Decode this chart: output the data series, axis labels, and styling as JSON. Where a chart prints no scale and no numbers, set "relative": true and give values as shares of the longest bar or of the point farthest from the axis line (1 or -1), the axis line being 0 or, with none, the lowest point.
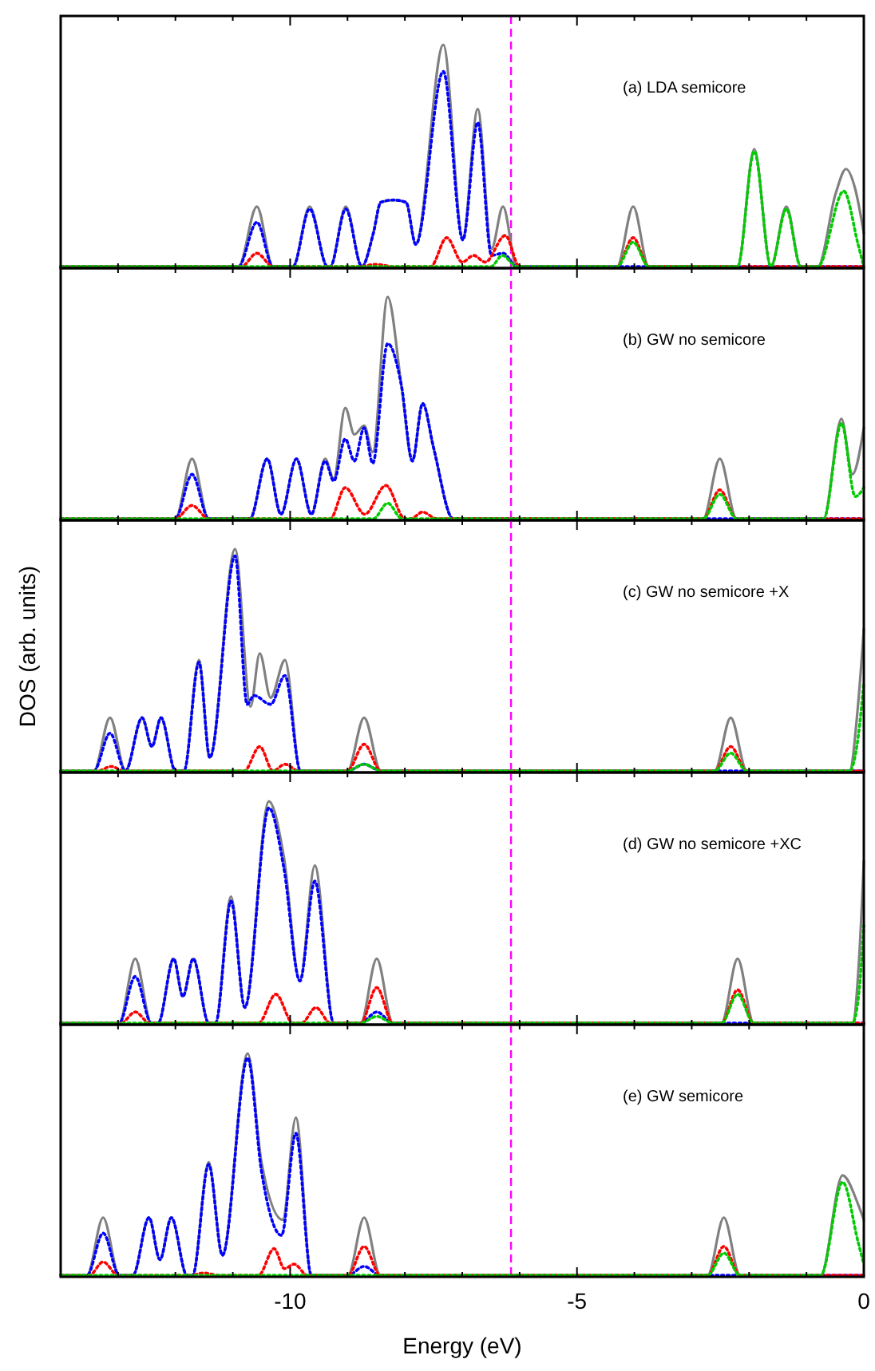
{
  "chart_data": [
    {
      "type": "line",
      "title": "(a) LDA semicore",
      "relative": true,
      "xlim": [
        -14,
        0
      ],
      "xticks": [
        {
          "value": -14,
          "label": null
        },
        {
          "value": -13,
          "label": null
        },
        {
          "value": -12,
          "label": null
        },
        {
          "value": -11,
          "label": null
        },
        -10,
        {
          "value": -9,
          "label": null
        },
        {
          "value": -8,
          "label": null
        },
        {
          "value": -7,
          "label": null
        },
        {
          "value": -6,
          "label": null
        },
        -5,
        {
          "value": -4,
          "label": null
        },
        {
          "value": -3,
          "label": null
        },
        {
          "value": -2,
          "label": null
        },
        {
          "value": -1,
          "label": null
        },
        0
      ],
      "tick_labels": false,
      "ref_lines": [
        {
          "axis": "x",
          "value": -6.15,
          "color": "#ff00ff",
          "line_style": "dashed"
        }
      ],
      "series": [
        {
          "color": "#808080",
          "line_style": "solid",
          "x": [
            -14,
            -10.9,
            -10.58,
            -10.3,
            -9.95,
            -9.66,
            -9.35,
            -9.3,
            -9.03,
            -8.75,
            -8.55,
            -8.42,
            -8.2,
            -7.98,
            -7.81,
            -7.33,
            -6.99,
            -6.73,
            -6.49,
            -6.29,
            -6.05,
            -4.3,
            -4.02,
            -3.75,
            -2.2,
            -1.91,
            -1.62,
            -1.35,
            -1.1,
            -0.8,
            -0.49,
            -0.31,
            -0.15,
            0
          ],
          "values": [
            0,
            0,
            0.27,
            0,
            0,
            0.27,
            0,
            0,
            0.27,
            0,
            0.15,
            0.29,
            0.3,
            0.29,
            0.1,
            1,
            0.13,
            0.71,
            0.08,
            0.27,
            0,
            0,
            0.27,
            0,
            0,
            0.53,
            0,
            0.27,
            0,
            0,
            0.33,
            0.44,
            0.35,
            0.15
          ]
        },
        {
          "color": "#0000ff",
          "line_style": "dotted",
          "x": [
            -14,
            -10.9,
            -10.58,
            -10.3,
            -9.95,
            -9.66,
            -9.35,
            -9.3,
            -9.03,
            -8.75,
            -8.55,
            -8.42,
            -8.2,
            -7.98,
            -7.81,
            -7.33,
            -6.99,
            -6.73,
            -6.49,
            -6.29,
            -6.05,
            0
          ],
          "values": [
            0,
            0,
            0.2,
            0,
            0,
            0.26,
            0,
            0,
            0.26,
            0,
            0.15,
            0.29,
            0.3,
            0.29,
            0.1,
            0.88,
            0.12,
            0.65,
            0.05,
            0.06,
            0,
            0
          ]
        },
        {
          "color": "#ff0000",
          "line_style": "dotted",
          "x": [
            -14,
            -10.85,
            -10.58,
            -10.3,
            -8.8,
            -8.5,
            -8.2,
            -7.55,
            -7.27,
            -7.0,
            -6.8,
            -6.6,
            -6.25,
            -6.0,
            -4.3,
            -4.02,
            -3.75,
            0
          ],
          "values": [
            0,
            0,
            0.06,
            0,
            0,
            0.01,
            0,
            0,
            0.13,
            0.02,
            0.05,
            0.02,
            0.14,
            0,
            0,
            0.13,
            0,
            0
          ]
        },
        {
          "color": "#00cc00",
          "line_style": "dotted",
          "x": [
            -14,
            -6.5,
            -6.3,
            -6.05,
            -4.3,
            -4.02,
            -3.75,
            -2.2,
            -1.91,
            -1.62,
            -1.35,
            -1.1,
            -0.8,
            -0.35,
            -0.1,
            0
          ],
          "values": [
            0,
            0,
            0.05,
            0,
            0,
            0.11,
            0,
            0,
            0.52,
            0,
            0.26,
            0,
            0,
            0.34,
            0.1,
            0
          ]
        }
      ]
    },
    {
      "type": "line",
      "title": "(b) GW no semicore",
      "relative": true,
      "xlim": [
        -14,
        0
      ],
      "xticks": [
        {
          "value": -14,
          "label": null
        },
        {
          "value": -13,
          "label": null
        },
        {
          "value": -12,
          "label": null
        },
        {
          "value": -11,
          "label": null
        },
        -10,
        {
          "value": -9,
          "label": null
        },
        {
          "value": -8,
          "label": null
        },
        {
          "value": -7,
          "label": null
        },
        {
          "value": -6,
          "label": null
        },
        -5,
        {
          "value": -4,
          "label": null
        },
        {
          "value": -3,
          "label": null
        },
        {
          "value": -2,
          "label": null
        },
        {
          "value": -1,
          "label": null
        },
        0
      ],
      "tick_labels": false,
      "ref_lines": [
        {
          "axis": "x",
          "value": -6.15,
          "color": "#ff00ff",
          "line_style": "dashed"
        }
      ],
      "series": [
        {
          "color": "#808080",
          "line_style": "solid",
          "x": [
            -14,
            -12.0,
            -11.71,
            -11.42,
            -10.7,
            -10.4,
            -10.16,
            -9.89,
            -9.63,
            -9.39,
            -9.24,
            -9.04,
            -8.88,
            -8.71,
            -8.56,
            -8.3,
            -8.06,
            -7.87,
            -7.69,
            -7.5,
            -7.16,
            -2.8,
            -2.51,
            -2.22,
            -0.7,
            -0.39,
            -0.2,
            0
          ],
          "values": [
            0,
            0,
            0.27,
            0,
            0,
            0.27,
            0.02,
            0.27,
            0.02,
            0.27,
            0.18,
            0.5,
            0.38,
            0.42,
            0.3,
            1,
            0.6,
            0.26,
            0.52,
            0.32,
            0,
            0,
            0.27,
            0,
            0,
            0.45,
            0.2,
            0.41
          ]
        },
        {
          "color": "#0000ff",
          "line_style": "dotted",
          "x": [
            -14,
            -12.0,
            -11.71,
            -11.42,
            -10.7,
            -10.4,
            -10.16,
            -9.89,
            -9.63,
            -9.39,
            -9.24,
            -9.04,
            -8.88,
            -8.71,
            -8.56,
            -8.3,
            -8.06,
            -7.87,
            -7.69,
            -7.5,
            -7.16,
            0
          ],
          "values": [
            0,
            0,
            0.2,
            0,
            0,
            0.27,
            0.02,
            0.27,
            0.02,
            0.26,
            0.17,
            0.36,
            0.26,
            0.41,
            0.25,
            0.79,
            0.6,
            0.26,
            0.52,
            0.32,
            0,
            0
          ]
        },
        {
          "color": "#ff0000",
          "line_style": "dotted",
          "x": [
            -14,
            -12.0,
            -11.71,
            -11.42,
            -9.3,
            -9.04,
            -8.7,
            -8.33,
            -8.0,
            -7.9,
            -7.69,
            -7.45,
            -2.8,
            -2.51,
            -2.22,
            0
          ],
          "values": [
            0,
            0,
            0.06,
            0,
            0,
            0.14,
            0.02,
            0.15,
            0,
            0,
            0.03,
            0,
            0,
            0.13,
            0,
            0
          ]
        },
        {
          "color": "#00cc00",
          "line_style": "dotted",
          "x": [
            -14,
            -8.55,
            -8.3,
            -8.05,
            -2.8,
            -2.51,
            -2.22,
            -0.7,
            -0.39,
            -0.15,
            0
          ],
          "values": [
            0,
            0,
            0.07,
            0,
            0,
            0.11,
            0,
            0,
            0.43,
            0.1,
            0.14
          ]
        }
      ]
    },
    {
      "type": "line",
      "title": "(c) GW no semicore +X",
      "ylabel": "DOS (arb. units)",
      "relative": true,
      "xlim": [
        -14,
        0
      ],
      "xticks": [
        {
          "value": -14,
          "label": null
        },
        {
          "value": -13,
          "label": null
        },
        {
          "value": -12,
          "label": null
        },
        {
          "value": -11,
          "label": null
        },
        -10,
        {
          "value": -9,
          "label": null
        },
        {
          "value": -8,
          "label": null
        },
        {
          "value": -7,
          "label": null
        },
        {
          "value": -6,
          "label": null
        },
        -5,
        {
          "value": -4,
          "label": null
        },
        {
          "value": -3,
          "label": null
        },
        {
          "value": -2,
          "label": null
        },
        {
          "value": -1,
          "label": null
        },
        0
      ],
      "tick_labels": false,
      "ref_lines": [
        {
          "axis": "x",
          "value": -6.15,
          "color": "#ff00ff",
          "line_style": "dashed"
        }
      ],
      "series": [
        {
          "color": "#808080",
          "line_style": "solid",
          "x": [
            -14,
            -13.42,
            -13.14,
            -12.87,
            -12.58,
            -12.41,
            -12.25,
            -12.0,
            -11.85,
            -11.59,
            -11.4,
            -10.96,
            -10.69,
            -10.53,
            -10.34,
            -10.09,
            -9.82,
            -9.0,
            -8.71,
            -8.42,
            -2.6,
            -2.32,
            -2.04,
            -0.25,
            -0.1,
            0
          ],
          "values": [
            0,
            0,
            0.24,
            0,
            0.24,
            0.11,
            0.24,
            0,
            0,
            0.5,
            0.06,
            1,
            0.29,
            0.53,
            0.33,
            0.5,
            0,
            0,
            0.24,
            0,
            0,
            0.24,
            0,
            0,
            0.3,
            0.64
          ]
        },
        {
          "color": "#0000ff",
          "line_style": "dotted",
          "x": [
            -14,
            -13.42,
            -13.14,
            -12.87,
            -12.58,
            -12.41,
            -12.25,
            -12.0,
            -11.85,
            -11.59,
            -11.4,
            -10.96,
            -10.75,
            -10.63,
            -10.34,
            -10.09,
            -9.82,
            -9.0,
            -8.71,
            -8.42,
            0
          ],
          "values": [
            0,
            0,
            0.17,
            0,
            0.24,
            0.11,
            0.24,
            0,
            0,
            0.49,
            0.06,
            0.97,
            0.3,
            0.34,
            0.3,
            0.43,
            0,
            0,
            0.03,
            0,
            0
          ]
        },
        {
          "color": "#ff0000",
          "line_style": "dotted",
          "x": [
            -14,
            -13.35,
            -13.12,
            -12.9,
            -10.8,
            -10.53,
            -10.3,
            -10.09,
            -9.85,
            -9.0,
            -8.71,
            -8.42,
            -2.6,
            -2.32,
            -2.04,
            0
          ],
          "values": [
            0,
            0,
            0.02,
            0,
            0,
            0.11,
            0,
            0.03,
            0,
            0,
            0.12,
            0,
            0,
            0.11,
            0,
            0
          ]
        },
        {
          "color": "#00cc00",
          "line_style": "dotted",
          "x": [
            -14,
            -9.0,
            -8.71,
            -8.42,
            -2.6,
            -2.32,
            -2.04,
            -0.25,
            -0.1,
            0
          ],
          "values": [
            0,
            0,
            0.03,
            0,
            0,
            0.08,
            0,
            0,
            0.15,
            0.4
          ]
        }
      ]
    },
    {
      "type": "line",
      "title": "(d) GW no semicore +XC",
      "relative": true,
      "xlim": [
        -14,
        0
      ],
      "xticks": [
        {
          "value": -14,
          "label": null
        },
        {
          "value": -13,
          "label": null
        },
        {
          "value": -12,
          "label": null
        },
        {
          "value": -11,
          "label": null
        },
        -10,
        {
          "value": -9,
          "label": null
        },
        {
          "value": -8,
          "label": null
        },
        {
          "value": -7,
          "label": null
        },
        {
          "value": -6,
          "label": null
        },
        -5,
        {
          "value": -4,
          "label": null
        },
        {
          "value": -3,
          "label": null
        },
        {
          "value": -2,
          "label": null
        },
        {
          "value": -1,
          "label": null
        },
        0
      ],
      "tick_labels": false,
      "ref_lines": [
        {
          "axis": "x",
          "value": -6.15,
          "color": "#ff00ff",
          "line_style": "dashed"
        }
      ],
      "series": [
        {
          "color": "#808080",
          "line_style": "solid",
          "x": [
            -14,
            -12.98,
            -12.7,
            -12.42,
            -12.3,
            -12.03,
            -11.87,
            -11.69,
            -11.42,
            -11.3,
            -11.03,
            -10.79,
            -10.37,
            -10.11,
            -9.83,
            -9.57,
            -9.24,
            -8.77,
            -8.49,
            -8.21,
            -2.48,
            -2.2,
            -1.92,
            -0.2,
            -0.08,
            0
          ],
          "values": [
            0,
            0,
            0.29,
            0,
            0,
            0.29,
            0.12,
            0.29,
            0,
            0,
            0.57,
            0.07,
            1,
            0.75,
            0.19,
            0.71,
            0,
            0,
            0.29,
            0,
            0,
            0.29,
            0,
            0,
            0.3,
            0.73
          ]
        },
        {
          "color": "#0000ff",
          "line_style": "dotted",
          "x": [
            -14,
            -12.98,
            -12.7,
            -12.42,
            -12.3,
            -12.03,
            -11.87,
            -11.69,
            -11.42,
            -11.3,
            -11.03,
            -10.79,
            -10.37,
            -10.11,
            -9.83,
            -9.57,
            -9.24,
            -8.77,
            -8.49,
            -8.21,
            0
          ],
          "values": [
            0,
            0,
            0.21,
            0,
            0,
            0.29,
            0.12,
            0.29,
            0,
            0,
            0.55,
            0.07,
            0.97,
            0.7,
            0.19,
            0.64,
            0,
            0,
            0.05,
            0,
            0
          ]
        },
        {
          "color": "#ff0000",
          "line_style": "dotted",
          "x": [
            -14,
            -12.95,
            -12.7,
            -12.45,
            -10.55,
            -10.25,
            -9.95,
            -9.8,
            -9.55,
            -9.3,
            -8.77,
            -8.49,
            -8.21,
            -2.48,
            -2.2,
            -1.92,
            0
          ],
          "values": [
            0,
            0,
            0.05,
            0,
            0,
            0.13,
            0,
            0,
            0.07,
            0,
            0,
            0.16,
            0,
            0,
            0.15,
            0,
            0
          ]
        },
        {
          "color": "#00cc00",
          "line_style": "dotted",
          "x": [
            -14,
            -8.77,
            -8.49,
            -8.21,
            -2.48,
            -2.2,
            -1.92,
            -0.2,
            -0.08,
            0
          ],
          "values": [
            0,
            0,
            0.03,
            0,
            0,
            0.13,
            0,
            0,
            0.15,
            0.44
          ]
        }
      ]
    },
    {
      "type": "line",
      "title": "(e) GW semicore",
      "xlabel": "Energy (eV)",
      "relative": true,
      "xlim": [
        -14,
        0
      ],
      "xticks": [
        {
          "value": -14,
          "label": null
        },
        {
          "value": -13,
          "label": null
        },
        {
          "value": -12,
          "label": null
        },
        {
          "value": -11,
          "label": null
        },
        -10,
        {
          "value": -9,
          "label": null
        },
        {
          "value": -8,
          "label": null
        },
        {
          "value": -7,
          "label": null
        },
        {
          "value": -6,
          "label": null
        },
        -5,
        {
          "value": -4,
          "label": null
        },
        {
          "value": -3,
          "label": null
        },
        {
          "value": -2,
          "label": null
        },
        {
          "value": -1,
          "label": null
        },
        0
      ],
      "tick_labels": "x",
      "ref_lines": [
        {
          "axis": "x",
          "value": -6.15,
          "color": "#ff00ff",
          "line_style": "dashed"
        }
      ],
      "series": [
        {
          "color": "#808080",
          "line_style": "solid",
          "x": [
            -14,
            -13.54,
            -13.26,
            -12.98,
            -12.74,
            -12.46,
            -12.27,
            -12.07,
            -11.8,
            -11.7,
            -11.42,
            -11.18,
            -10.74,
            -10.5,
            -10.13,
            -9.9,
            -9.63,
            -8.99,
            -8.71,
            -8.43,
            -2.72,
            -2.44,
            -2.16,
            -0.75,
            -0.37,
            -0.1,
            0
          ],
          "values": [
            0,
            0,
            0.26,
            0,
            0,
            0.26,
            0.07,
            0.26,
            0,
            0,
            0.51,
            0.09,
            1,
            0.51,
            0.25,
            0.71,
            0,
            0,
            0.26,
            0,
            0,
            0.26,
            0,
            0,
            0.45,
            0.32,
            0.25
          ]
        },
        {
          "color": "#0000ff",
          "line_style": "dotted",
          "x": [
            -14,
            -13.54,
            -13.26,
            -12.98,
            -12.74,
            -12.46,
            -12.27,
            -12.07,
            -11.8,
            -11.7,
            -11.42,
            -11.18,
            -10.74,
            -10.5,
            -10.15,
            -9.9,
            -9.63,
            -8.99,
            -8.71,
            -8.43,
            0
          ],
          "values": [
            0,
            0,
            0.19,
            0,
            0,
            0.26,
            0.07,
            0.26,
            0,
            0,
            0.5,
            0.09,
            0.98,
            0.47,
            0.18,
            0.64,
            0,
            0,
            0.04,
            0,
            0
          ]
        },
        {
          "color": "#ff0000",
          "line_style": "dotted",
          "x": [
            -14,
            -13.5,
            -13.26,
            -13.0,
            -11.75,
            -11.5,
            -11.25,
            -10.55,
            -10.28,
            -10.1,
            -9.93,
            -9.7,
            -8.99,
            -8.71,
            -8.43,
            -2.72,
            -2.44,
            -2.16,
            0
          ],
          "values": [
            0,
            0,
            0.06,
            0,
            0,
            0.01,
            0,
            0,
            0.12,
            0.03,
            0.05,
            0,
            0,
            0.13,
            0,
            0,
            0.13,
            0,
            0
          ]
        },
        {
          "color": "#00cc00",
          "line_style": "dotted",
          "x": [
            -14,
            -2.72,
            -2.44,
            -2.16,
            -0.75,
            -0.37,
            -0.1,
            0
          ],
          "values": [
            0,
            0,
            0.1,
            0,
            0,
            0.42,
            0.15,
            0.05
          ]
        }
      ]
    }
  ]
}
